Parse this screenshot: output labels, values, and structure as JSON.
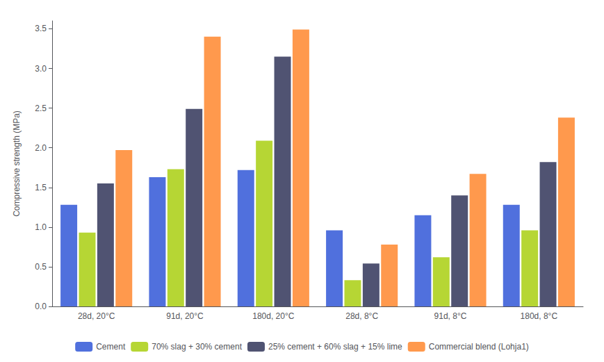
{
  "chart_data": {
    "type": "bar",
    "categories": [
      "28d, 20°C",
      "91d, 20°C",
      "180d, 20°C",
      "28d, 8°C",
      "91d, 8°C",
      "180d, 8°C"
    ],
    "series": [
      {
        "name": "Cement",
        "values": [
          1.28,
          1.63,
          1.72,
          0.96,
          1.15,
          1.28
        ]
      },
      {
        "name": "70% slag + 30% cement",
        "values": [
          0.93,
          1.73,
          2.09,
          0.33,
          0.62,
          0.96
        ]
      },
      {
        "name": "25% cement + 60% slag + 15% lime",
        "values": [
          1.55,
          2.49,
          3.15,
          0.54,
          1.4,
          1.82
        ]
      },
      {
        "name": "Commercial blend (Lohja1)",
        "values": [
          1.97,
          3.4,
          3.49,
          0.78,
          1.67,
          2.38
        ]
      }
    ],
    "ylabel": "Compressive strength (MPa)",
    "ylim": [
      0,
      3.6
    ],
    "yticks": [
      {
        "value": 0,
        "label": "0.0"
      },
      0.5,
      {
        "value": 1.0,
        "label": "1.0"
      },
      1.5,
      {
        "value": 2.0,
        "label": "2.0"
      },
      2.5,
      {
        "value": 3.0,
        "label": "3.0"
      },
      3.5
    ],
    "grid": false,
    "legend": "bottom"
  }
}
